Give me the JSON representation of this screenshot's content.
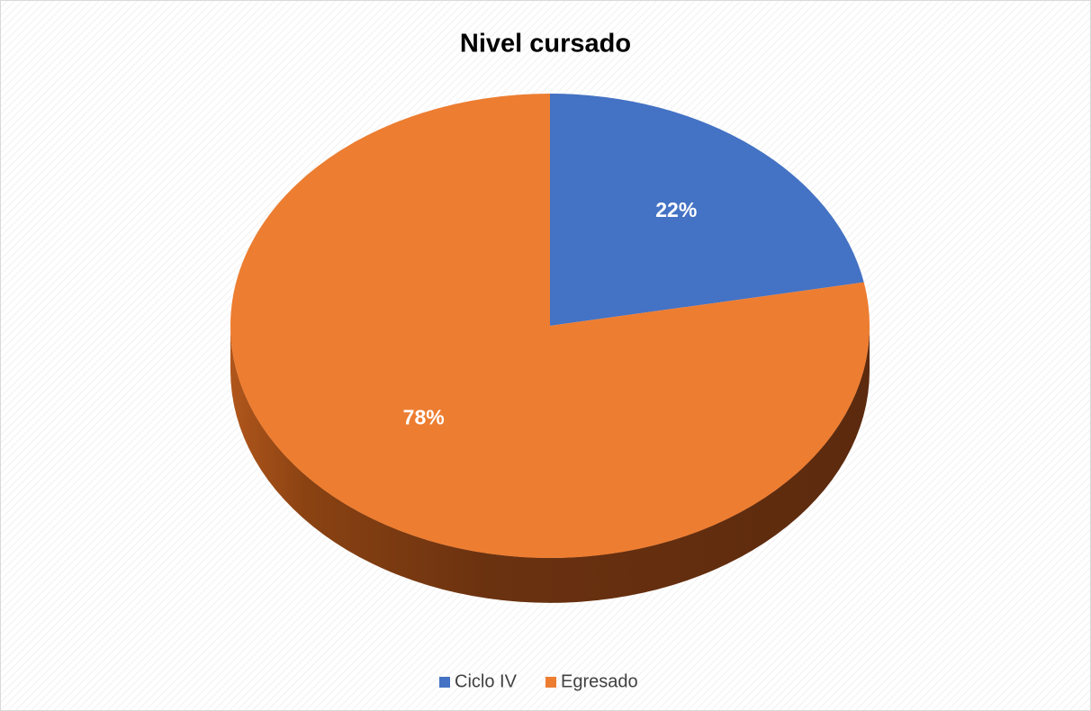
{
  "chart_data": {
    "type": "pie",
    "title": "Nivel cursado",
    "categories": [
      "Ciclo IV",
      "Egresado"
    ],
    "values": [
      22,
      78
    ],
    "value_labels": [
      "22%",
      "78%"
    ],
    "colors": [
      "#4472c4",
      "#ed7d31"
    ],
    "legend": "bottom"
  }
}
